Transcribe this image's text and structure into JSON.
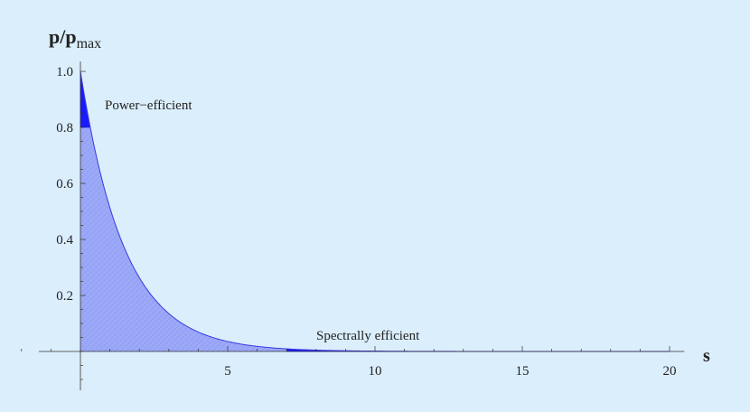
{
  "chart_data": {
    "type": "area",
    "ylabel_main": "p/p",
    "ylabel_sub": "max",
    "xlabel": "s",
    "xlim": [
      -3,
      20.5
    ],
    "ylim": [
      -0.13,
      1.06
    ],
    "x_ticks": [
      5,
      10,
      15,
      20
    ],
    "y_ticks": [
      0.2,
      0.4,
      0.6,
      0.8,
      1.0
    ],
    "x_tick_labels": [
      "5",
      "10",
      "15",
      "20"
    ],
    "y_tick_labels": [
      "0.2",
      "0.4",
      "0.6",
      "0.8",
      "1.0"
    ],
    "curve": {
      "formula": "y = exp(-x / 1.5)",
      "decay_constant": 1.5,
      "x_start": 0,
      "x_end": 20
    },
    "regions": [
      {
        "name": "Power-efficient",
        "label": "Power−efficient",
        "x_range": [
          0,
          0.33
        ],
        "y_range": [
          0.8,
          1.0
        ],
        "color": "#1a1aff"
      },
      {
        "name": "Spectrally efficient",
        "label": "Spectrally efficient",
        "x_range": [
          7,
          20
        ],
        "y_range": [
          0,
          0.01
        ],
        "color": "#1a1aff"
      }
    ],
    "fill_color": "#8fa0f5",
    "curve_color": "#3a3ae0",
    "grid": false
  }
}
